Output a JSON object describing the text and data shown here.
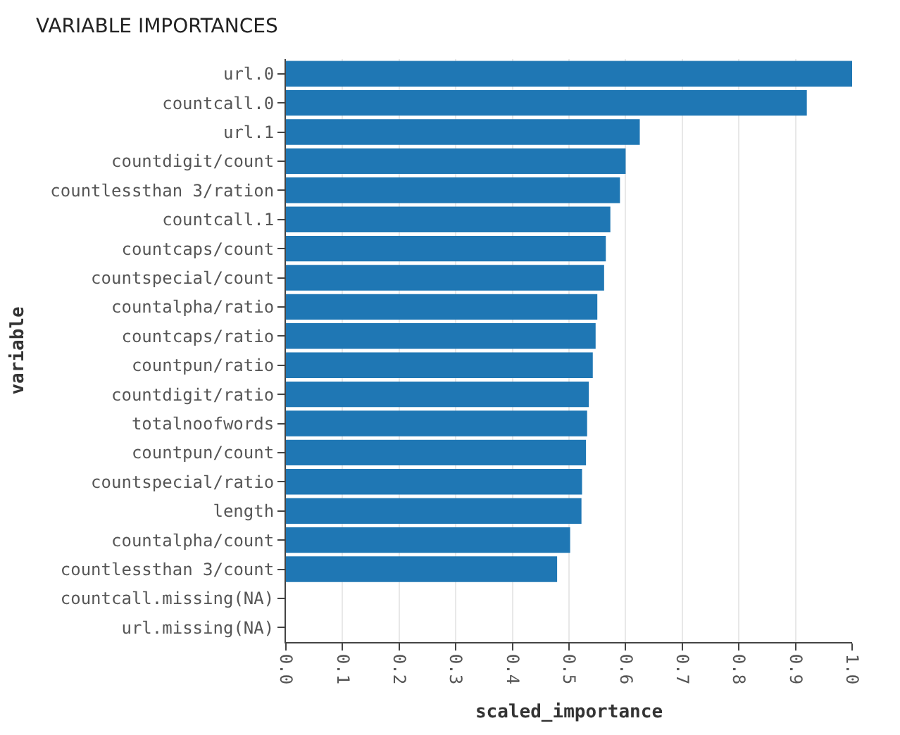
{
  "chart_data": {
    "type": "bar",
    "orientation": "horizontal",
    "title": "VARIABLE IMPORTANCES",
    "xlabel": "scaled_importance",
    "ylabel": "variable",
    "categories": [
      "url.0",
      "countcall.0",
      "url.1",
      "countdigit/count",
      "countlessthan 3/ration",
      "countcall.1",
      "countcaps/count",
      "countspecial/count",
      "countalpha/ratio",
      "countcaps/ratio",
      "countpun/ratio",
      "countdigit/ratio",
      "totalnoofwords",
      "countpun/count",
      "countspecial/ratio",
      "length",
      "countalpha/count",
      "countlessthan 3/count",
      "countcall.missing(NA)",
      "url.missing(NA)"
    ],
    "values": [
      1.0,
      0.92,
      0.625,
      0.6,
      0.59,
      0.573,
      0.565,
      0.562,
      0.55,
      0.547,
      0.542,
      0.535,
      0.532,
      0.53,
      0.523,
      0.522,
      0.502,
      0.479,
      0,
      0
    ],
    "color": "#1f77b4",
    "xlim": [
      0,
      1
    ],
    "xticks": [
      {
        "value": 0,
        "label": "0.0"
      },
      {
        "value": 0.1,
        "label": "0.1"
      },
      {
        "value": 0.2,
        "label": "0.2"
      },
      {
        "value": 0.3,
        "label": "0.3"
      },
      {
        "value": 0.4,
        "label": "0.4"
      },
      {
        "value": 0.5,
        "label": "0.5"
      },
      {
        "value": 0.6,
        "label": "0.6"
      },
      {
        "value": 0.7,
        "label": "0.7"
      },
      {
        "value": 0.8,
        "label": "0.8"
      },
      {
        "value": 0.9,
        "label": "0.9"
      },
      {
        "value": 1,
        "label": "1.0"
      }
    ],
    "grid": "x"
  }
}
